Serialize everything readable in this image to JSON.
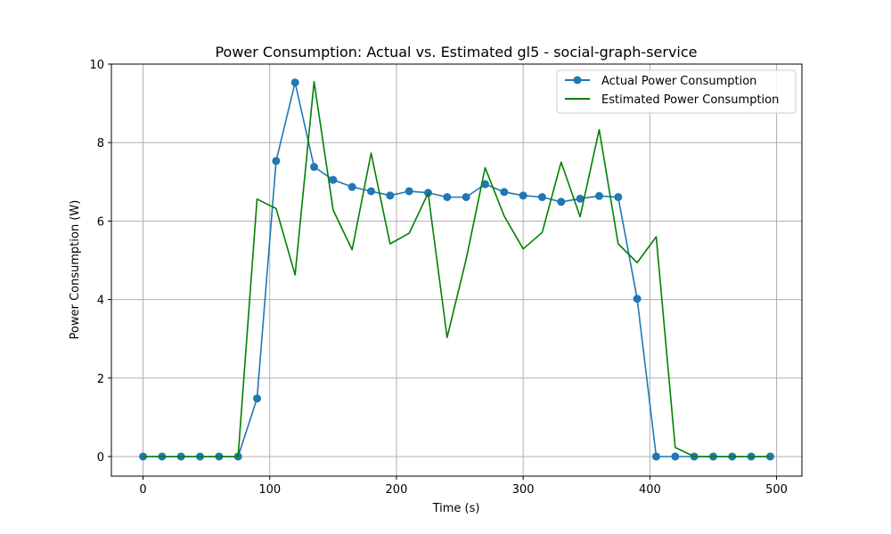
{
  "chart_data": {
    "type": "line",
    "title": "Power Consumption: Actual vs. Estimated gl5 - social-graph-service",
    "xlabel": "Time (s)",
    "ylabel": "Power Consumption (W)",
    "xlim": [
      -25,
      520
    ],
    "ylim": [
      -0.5,
      10
    ],
    "xticks": [
      0,
      100,
      200,
      300,
      400,
      500
    ],
    "yticks": [
      0,
      2,
      4,
      6,
      8,
      10
    ],
    "grid": true,
    "legend_position": "upper right",
    "series": [
      {
        "name": "Actual Power Consumption",
        "color": "#1f77b4",
        "marker": "circle",
        "x": [
          0,
          15,
          30,
          45,
          60,
          75,
          90,
          105,
          120,
          135,
          150,
          165,
          180,
          195,
          210,
          225,
          240,
          255,
          270,
          285,
          300,
          315,
          330,
          345,
          360,
          375,
          390,
          405,
          420,
          435,
          450,
          465,
          480,
          495
        ],
        "y": [
          0,
          0,
          0,
          0,
          0,
          0,
          1.48,
          7.53,
          9.53,
          7.38,
          7.05,
          6.87,
          6.76,
          6.65,
          6.76,
          6.72,
          6.61,
          6.61,
          6.94,
          6.74,
          6.65,
          6.61,
          6.49,
          6.57,
          6.64,
          6.61,
          4.02,
          0,
          0,
          0,
          0,
          0,
          0,
          0
        ]
      },
      {
        "name": "Estimated Power Consumption",
        "color": "#008000",
        "marker": "none",
        "x": [
          0,
          15,
          30,
          45,
          60,
          75,
          90,
          105,
          120,
          135,
          150,
          165,
          180,
          195,
          210,
          225,
          240,
          255,
          270,
          285,
          300,
          315,
          330,
          345,
          360,
          375,
          390,
          405,
          420,
          435,
          450,
          465,
          480,
          495
        ],
        "y": [
          0,
          0,
          0,
          0,
          0,
          0,
          6.56,
          6.32,
          4.63,
          9.55,
          6.28,
          5.27,
          7.73,
          5.42,
          5.69,
          6.71,
          3.03,
          5.03,
          7.36,
          6.13,
          5.29,
          5.71,
          7.5,
          6.11,
          8.33,
          5.42,
          4.94,
          5.6,
          0.23,
          0,
          0,
          0,
          0,
          0
        ]
      }
    ]
  }
}
